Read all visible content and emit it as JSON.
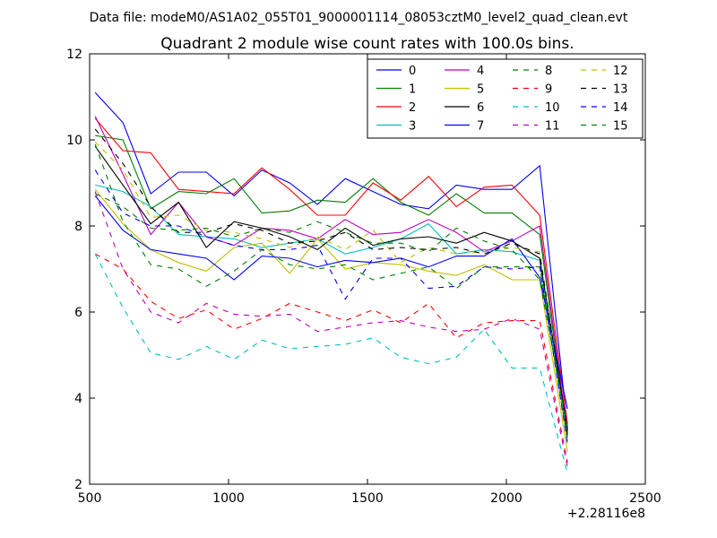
{
  "header": {
    "datafile_text": "Data file: modeM0/AS1A02_055T01_9000001114_08053cztM0_level2_quad_clean.evt"
  },
  "chart_data": {
    "type": "line",
    "title": "Quadrant 2 module wise count rates with 100.0s bins.",
    "xlabel": "",
    "ylabel": "",
    "x_offset_text": "+2.28116e8",
    "xlim": [
      500,
      2500
    ],
    "ylim": [
      2,
      12
    ],
    "xticks": [
      500,
      1000,
      1500,
      2000,
      2500
    ],
    "yticks": [
      2,
      4,
      6,
      8,
      10,
      12
    ],
    "grid": false,
    "legend_position": "top-right",
    "legend_columns": 4,
    "x": [
      520,
      620,
      720,
      820,
      920,
      1020,
      1120,
      1220,
      1320,
      1420,
      1520,
      1620,
      1720,
      1820,
      1920,
      2020,
      2120,
      2220
    ],
    "series": [
      {
        "name": "0",
        "color": "#0000ff",
        "dash": "solid",
        "values": [
          11.1,
          10.4,
          8.75,
          9.25,
          9.25,
          8.7,
          9.3,
          9.0,
          8.5,
          9.1,
          8.8,
          8.5,
          8.4,
          8.95,
          8.85,
          8.85,
          9.4,
          3.3
        ]
      },
      {
        "name": "1",
        "color": "#008000",
        "dash": "solid",
        "values": [
          10.1,
          10.0,
          8.4,
          8.8,
          8.75,
          9.1,
          8.3,
          8.35,
          8.6,
          8.55,
          9.1,
          8.55,
          8.25,
          8.75,
          8.3,
          8.3,
          7.8,
          3.1
        ]
      },
      {
        "name": "2",
        "color": "#ff0000",
        "dash": "solid",
        "values": [
          10.5,
          9.75,
          9.7,
          8.85,
          8.8,
          8.75,
          9.35,
          8.85,
          8.25,
          8.25,
          9.0,
          8.6,
          9.15,
          8.45,
          8.9,
          8.95,
          8.25,
          3.4
        ]
      },
      {
        "name": "3",
        "color": "#00bfbf",
        "dash": "solid",
        "values": [
          8.95,
          8.8,
          8.45,
          7.8,
          7.75,
          7.7,
          7.5,
          7.6,
          7.7,
          7.35,
          7.5,
          7.7,
          8.05,
          7.35,
          7.45,
          7.4,
          7.2,
          3.1
        ]
      },
      {
        "name": "4",
        "color": "#bf00bf",
        "dash": "solid",
        "values": [
          10.55,
          9.2,
          7.8,
          8.55,
          7.75,
          7.55,
          7.95,
          7.9,
          7.7,
          8.15,
          7.8,
          7.85,
          8.15,
          7.85,
          7.4,
          7.65,
          8.0,
          3.2
        ]
      },
      {
        "name": "5",
        "color": "#bfbf00",
        "dash": "solid",
        "values": [
          8.85,
          8.05,
          7.45,
          7.15,
          6.95,
          7.5,
          7.6,
          6.9,
          7.7,
          7.0,
          7.15,
          7.1,
          6.95,
          6.85,
          7.1,
          6.75,
          6.75,
          2.75
        ]
      },
      {
        "name": "6",
        "color": "#000000",
        "dash": "solid",
        "values": [
          9.85,
          8.95,
          8.05,
          8.55,
          7.5,
          8.1,
          7.95,
          7.75,
          7.45,
          7.95,
          7.55,
          7.7,
          7.75,
          7.6,
          7.85,
          7.65,
          7.25,
          3.25
        ]
      },
      {
        "name": "7",
        "color": "#0000ff",
        "dash": "solid",
        "values": [
          8.7,
          7.9,
          7.45,
          7.35,
          7.25,
          6.75,
          7.3,
          7.25,
          7.05,
          7.2,
          7.15,
          7.25,
          7.05,
          7.3,
          7.3,
          7.7,
          6.8,
          3.75
        ]
      },
      {
        "name": "8",
        "color": "#008000",
        "dash": "dashed",
        "values": [
          9.9,
          8.1,
          7.1,
          7.0,
          6.6,
          6.95,
          7.45,
          7.1,
          7.0,
          7.1,
          6.75,
          6.9,
          7.05,
          6.55,
          7.05,
          7.05,
          7.05,
          3.0
        ]
      },
      {
        "name": "9",
        "color": "#ff0000",
        "dash": "dashed",
        "values": [
          7.35,
          7.0,
          6.25,
          5.85,
          6.05,
          5.6,
          5.85,
          6.2,
          6.0,
          5.8,
          6.05,
          5.75,
          6.2,
          5.4,
          5.75,
          5.8,
          5.8,
          2.5
        ]
      },
      {
        "name": "10",
        "color": "#00bfbf",
        "dash": "dashed",
        "values": [
          7.35,
          6.1,
          5.05,
          4.9,
          5.2,
          4.9,
          5.35,
          5.15,
          5.2,
          5.25,
          5.4,
          4.95,
          4.8,
          4.95,
          5.6,
          4.7,
          4.7,
          2.25
        ]
      },
      {
        "name": "11",
        "color": "#bf00bf",
        "dash": "dashed",
        "values": [
          8.8,
          7.0,
          6.0,
          5.75,
          6.2,
          5.95,
          5.9,
          5.95,
          5.55,
          5.65,
          5.75,
          5.8,
          5.65,
          5.55,
          5.6,
          5.85,
          5.6,
          2.4
        ]
      },
      {
        "name": "12",
        "color": "#bfbf00",
        "dash": "dashed",
        "values": [
          9.95,
          9.3,
          8.2,
          8.25,
          7.9,
          7.85,
          7.7,
          7.5,
          7.75,
          7.45,
          7.9,
          7.15,
          7.5,
          7.35,
          7.4,
          7.5,
          7.4,
          2.95
        ]
      },
      {
        "name": "13",
        "color": "#000000",
        "dash": "dashed",
        "values": [
          10.25,
          9.45,
          8.45,
          7.85,
          7.85,
          8.05,
          7.9,
          7.6,
          7.65,
          7.85,
          7.45,
          7.5,
          7.45,
          7.5,
          7.35,
          7.6,
          7.35,
          3.15
        ]
      },
      {
        "name": "14",
        "color": "#0000ff",
        "dash": "dashed",
        "values": [
          9.3,
          8.3,
          8.0,
          8.0,
          7.75,
          7.55,
          7.45,
          7.45,
          7.55,
          6.3,
          7.25,
          7.25,
          6.55,
          6.6,
          7.05,
          7.0,
          7.05,
          2.95
        ]
      },
      {
        "name": "15",
        "color": "#008000",
        "dash": "dashed",
        "values": [
          8.75,
          8.45,
          7.95,
          7.9,
          7.95,
          7.75,
          7.95,
          7.85,
          8.1,
          7.85,
          7.6,
          7.6,
          7.4,
          7.95,
          7.65,
          7.45,
          6.75,
          3.3
        ]
      }
    ]
  }
}
